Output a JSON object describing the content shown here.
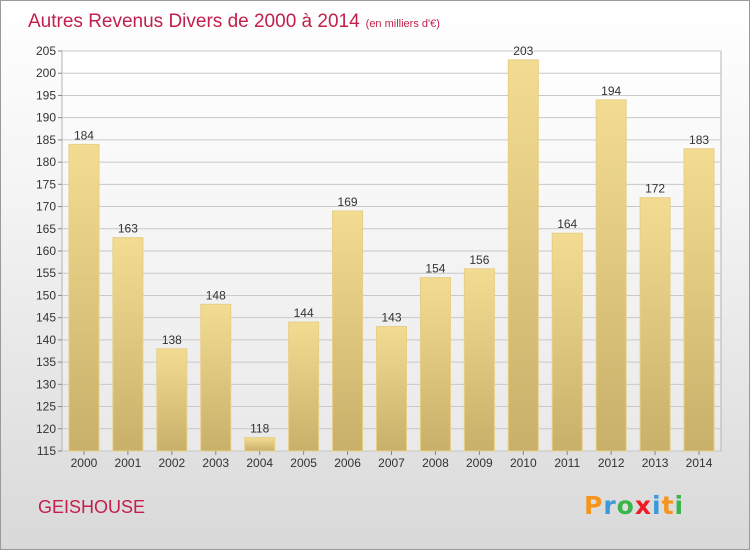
{
  "header": {
    "title": "Autres Revenus Divers de 2000 à 2014",
    "subtitle": "(en milliers d'€)"
  },
  "footer": {
    "commune": "GEISHOUSE",
    "logo": [
      "P",
      "r",
      "o",
      "x",
      "i",
      "t",
      "i"
    ],
    "logo_colors": [
      "#f7941d",
      "#3a9ad9",
      "#39b54a",
      "#ed1c24",
      "#3a9ad9",
      "#f7941d",
      "#39b54a"
    ]
  },
  "chart_data": {
    "type": "bar",
    "title": "Autres Revenus Divers de 2000 à 2014",
    "subtitle": "(en milliers d'€)",
    "categories": [
      "2000",
      "2001",
      "2002",
      "2003",
      "2004",
      "2005",
      "2006",
      "2007",
      "2008",
      "2009",
      "2010",
      "2011",
      "2012",
      "2013",
      "2014"
    ],
    "values": [
      184,
      163,
      138,
      148,
      118,
      144,
      169,
      143,
      154,
      156,
      203,
      164,
      194,
      172,
      183
    ],
    "ylim": [
      115,
      205
    ],
    "ytick_step": 5,
    "grid": true,
    "bar_colors": [
      "#f3dc92",
      "#c9b06a"
    ]
  }
}
